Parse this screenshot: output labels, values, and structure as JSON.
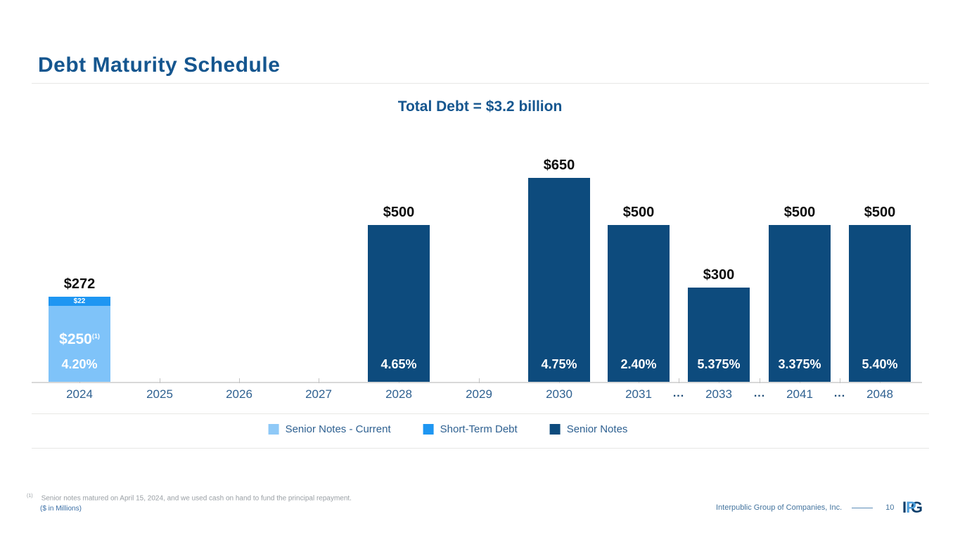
{
  "slide": {
    "title": "Debt Maturity Schedule"
  },
  "chart_data": {
    "type": "bar",
    "stacked": true,
    "title": "Total Debt = $3.2 billion",
    "unit": "$ in Millions",
    "grid": false,
    "legend_position": "bottom",
    "ylim": [
      0,
      700
    ],
    "x_labels": [
      "2024",
      "2025",
      "2026",
      "2027",
      "2028",
      "2029",
      "2030",
      "2031",
      "...",
      "2033",
      "...",
      "2041",
      "...",
      "2048"
    ],
    "bars": [
      {
        "x": "2024",
        "total": 272,
        "total_label": "$272",
        "rate_label": "4.20%",
        "segments": [
          {
            "series": "Short-Term Debt",
            "value": 22,
            "label": "$22"
          },
          {
            "series": "Senior Notes - Current",
            "value": 250,
            "label": "$250",
            "label_footnote": "(1)"
          }
        ]
      },
      {
        "x": "2028",
        "total": 500,
        "total_label": "$500",
        "rate_label": "4.65%",
        "segments": [
          {
            "series": "Senior Notes",
            "value": 500
          }
        ]
      },
      {
        "x": "2030",
        "total": 650,
        "total_label": "$650",
        "rate_label": "4.75%",
        "segments": [
          {
            "series": "Senior Notes",
            "value": 650
          }
        ]
      },
      {
        "x": "2031",
        "total": 500,
        "total_label": "$500",
        "rate_label": "2.40%",
        "segments": [
          {
            "series": "Senior Notes",
            "value": 500
          }
        ]
      },
      {
        "x": "2033",
        "total": 300,
        "total_label": "$300",
        "rate_label": "5.375%",
        "segments": [
          {
            "series": "Senior Notes",
            "value": 300
          }
        ]
      },
      {
        "x": "2041",
        "total": 500,
        "total_label": "$500",
        "rate_label": "3.375%",
        "segments": [
          {
            "series": "Senior Notes",
            "value": 500
          }
        ]
      },
      {
        "x": "2048",
        "total": 500,
        "total_label": "$500",
        "rate_label": "5.40%",
        "segments": [
          {
            "series": "Senior Notes",
            "value": 500
          }
        ]
      }
    ],
    "series_colors": {
      "Senior Notes - Current": "#7FC3F9",
      "Short-Term Debt": "#1E96F2",
      "Senior Notes": "#0D4B7D"
    },
    "legend": [
      {
        "label": "Senior Notes - Current",
        "color": "#8FC9F7"
      },
      {
        "label": "Short-Term Debt",
        "color": "#1E96F2"
      },
      {
        "label": "Senior Notes",
        "color": "#0D4B7D"
      }
    ]
  },
  "footnote": {
    "marker": "(1)",
    "text": "Senior notes matured on April 15, 2024, and we used cash on hand to fund the principal repayment.",
    "units": "($ in Millions)"
  },
  "footer": {
    "company": "Interpublic Group of Companies, Inc.",
    "page": "10",
    "logo_letters": {
      "l1": "I",
      "l2": "P",
      "l3": "G"
    }
  }
}
